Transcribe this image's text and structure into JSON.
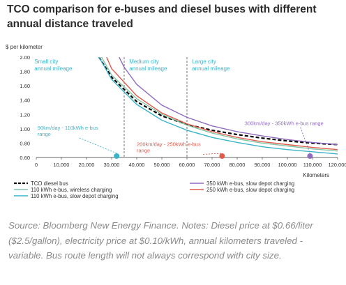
{
  "title": "TCO comparison for e-buses and diesel buses with different annual distance traveled",
  "caption": "Source: Bloomberg New Energy Finance. Notes: Diesel price at $0.66/liter ($2.5/gallon), electricity price at $0.10/kWh, annual kilometers traveled - variable. Bus route length will not always correspond with city size.",
  "chart_data": {
    "type": "line",
    "ylabel": "$ per kilometer",
    "xlabel": "Kilometers",
    "xlim": [
      0,
      120000
    ],
    "ylim": [
      0.6,
      2.0
    ],
    "x_ticks": [
      0,
      10000,
      20000,
      30000,
      40000,
      50000,
      60000,
      70000,
      80000,
      90000,
      100000,
      110000,
      120000
    ],
    "x_tick_labels": [
      "0",
      "10,000",
      "20,000",
      "30,000",
      "40,000",
      "50,000",
      "60,000",
      "70,000",
      "80,000",
      "90,000",
      "100,000",
      "110,000",
      "120,000"
    ],
    "y_ticks": [
      0.6,
      0.8,
      1.0,
      1.2,
      1.4,
      1.6,
      1.8,
      2.0
    ],
    "y_tick_labels": [
      "0.60",
      "0.80",
      "1.00",
      "1.20",
      "1.40",
      "1.60",
      "1.80",
      "2.00"
    ],
    "grid": false,
    "legend_position": "bottom",
    "region_dividers": [
      35000,
      60000
    ],
    "regions": [
      {
        "label": [
          "Small city",
          "annual mileage"
        ],
        "x": 2000
      },
      {
        "label": [
          "Medium city",
          "annual mileage"
        ],
        "x": 37000
      },
      {
        "label": [
          "Large city",
          "annual mileage"
        ],
        "x": 62000
      }
    ],
    "series": [
      {
        "name": "TCO diesel bus",
        "color": "#000000",
        "dash": true,
        "x": [
          25000,
          30000,
          40000,
          50000,
          60000,
          70000,
          80000,
          90000,
          100000,
          110000,
          120000
        ],
        "y": [
          2.0,
          1.72,
          1.38,
          1.18,
          1.06,
          0.98,
          0.92,
          0.87,
          0.83,
          0.8,
          0.78
        ]
      },
      {
        "name": "110 kWh e-bus, wireless charging",
        "color": "#82c6a6",
        "dash": false,
        "x": [
          26000,
          30000,
          40000,
          50000,
          60000,
          70000,
          80000,
          90000,
          100000,
          110000,
          120000
        ],
        "y": [
          2.0,
          1.75,
          1.42,
          1.2,
          1.05,
          0.94,
          0.86,
          0.8,
          0.76,
          0.72,
          0.69
        ]
      },
      {
        "name": "110 kWh e-bus, slow depot charging",
        "color": "#3ab3c9",
        "dash": false,
        "x": [
          25000,
          30000,
          40000,
          50000,
          60000,
          70000,
          80000,
          90000,
          100000,
          110000,
          120000
        ],
        "y": [
          2.0,
          1.69,
          1.34,
          1.12,
          0.98,
          0.88,
          0.81,
          0.75,
          0.71,
          0.68,
          0.65
        ]
      },
      {
        "name": "350 kWh e-bus, slow depot charging",
        "color": "#8e6bbf",
        "dash": false,
        "x": [
          33000,
          35000,
          40000,
          50000,
          60000,
          70000,
          80000,
          90000,
          100000,
          110000,
          120000
        ],
        "y": [
          2.0,
          1.86,
          1.62,
          1.33,
          1.16,
          1.04,
          0.96,
          0.9,
          0.85,
          0.81,
          0.78
        ]
      },
      {
        "name": "250 kWh e-bus, slow depot charging",
        "color": "#e05a4b",
        "dash": false,
        "x": [
          28000,
          30000,
          40000,
          50000,
          60000,
          70000,
          80000,
          90000,
          100000,
          110000,
          120000
        ],
        "y": [
          2.0,
          1.84,
          1.46,
          1.22,
          1.07,
          0.96,
          0.88,
          0.82,
          0.78,
          0.74,
          0.71
        ]
      }
    ],
    "annotations": [
      {
        "lines": [
          "90km/day - 110kWh e-bus",
          "range"
        ],
        "color": "#3ab3c9",
        "text_x": 500,
        "text_y": 0.99,
        "point_x": 32000,
        "point_y": 0.62
      },
      {
        "lines": [
          "200km/day - 250kWh e-bus",
          "range"
        ],
        "color": "#e05a4b",
        "text_x": 40000,
        "text_y": 0.76,
        "point_x": 74000,
        "point_y": 0.62
      },
      {
        "lines": [
          "300km/day - 350kWh e-bus range"
        ],
        "color": "#8e6bbf",
        "text_x": 83000,
        "text_y": 1.05,
        "point_x": 109000,
        "point_y": 0.62
      }
    ]
  }
}
